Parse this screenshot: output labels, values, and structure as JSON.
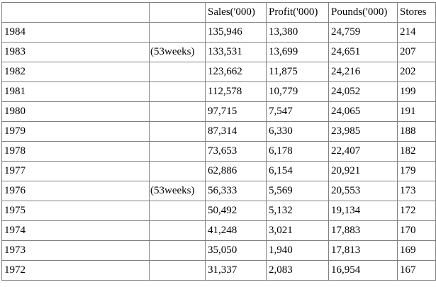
{
  "table": {
    "headers": [
      "",
      "",
      "Sales('000)",
      "Profit('000)",
      "Pounds('000)",
      "Stores"
    ],
    "rows": [
      [
        "1984",
        "",
        "135,946",
        "13,380",
        "24,759",
        "214"
      ],
      [
        "1983",
        "(53weeks)",
        "133,531",
        "13,699",
        "24,651",
        "207"
      ],
      [
        "1982",
        "",
        "123,662",
        "11,875",
        "24,216",
        "202"
      ],
      [
        "1981",
        "",
        "112,578",
        "10,779",
        "24,052",
        "199"
      ],
      [
        "1980",
        "",
        "97,715",
        "7,547",
        "24,065",
        "191"
      ],
      [
        "1979",
        "",
        "87,314",
        "6,330",
        "23,985",
        "188"
      ],
      [
        "1978",
        "",
        "73,653",
        "6,178",
        "22,407",
        "182"
      ],
      [
        "1977",
        "",
        "62,886",
        "6,154",
        "20,921",
        "179"
      ],
      [
        "1976",
        "(53weeks)",
        "56,333",
        "5,569",
        "20,553",
        "173"
      ],
      [
        "1975",
        "",
        "50,492",
        "5,132",
        "19,134",
        "172"
      ],
      [
        "1974",
        "",
        "41,248",
        "3,021",
        "17,883",
        "170"
      ],
      [
        "1973",
        "",
        "35,050",
        "1,940",
        "17,813",
        "169"
      ],
      [
        "1972",
        "",
        "31,337",
        "2,083",
        "16,954",
        "167"
      ]
    ]
  }
}
